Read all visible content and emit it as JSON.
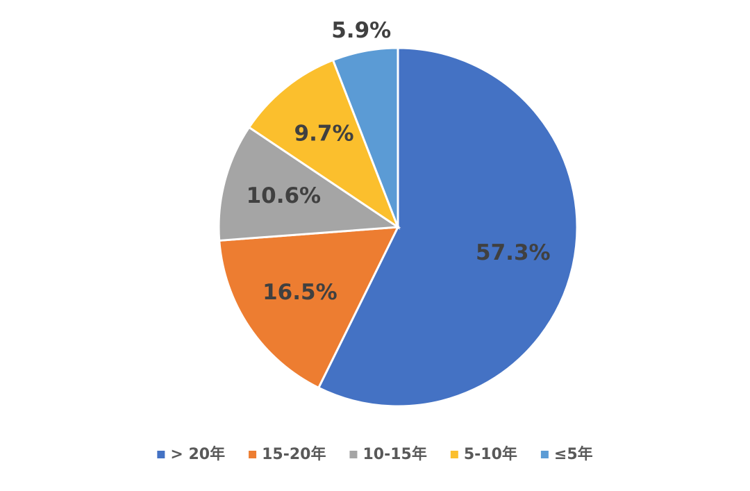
{
  "chart_data": {
    "type": "pie",
    "categories": [
      "> 20年",
      "15-20年",
      "10-15年",
      "5-10年",
      "≤5年"
    ],
    "values": [
      57.3,
      16.5,
      10.6,
      9.7,
      5.9
    ],
    "value_labels": [
      "57.3%",
      "16.5%",
      "10.6%",
      "9.7%",
      "5.9%"
    ],
    "colors": [
      "#4472c4",
      "#ed7d31",
      "#a5a5a5",
      "#fbbf2d",
      "#5b9bd5"
    ],
    "legend": "bottom"
  }
}
